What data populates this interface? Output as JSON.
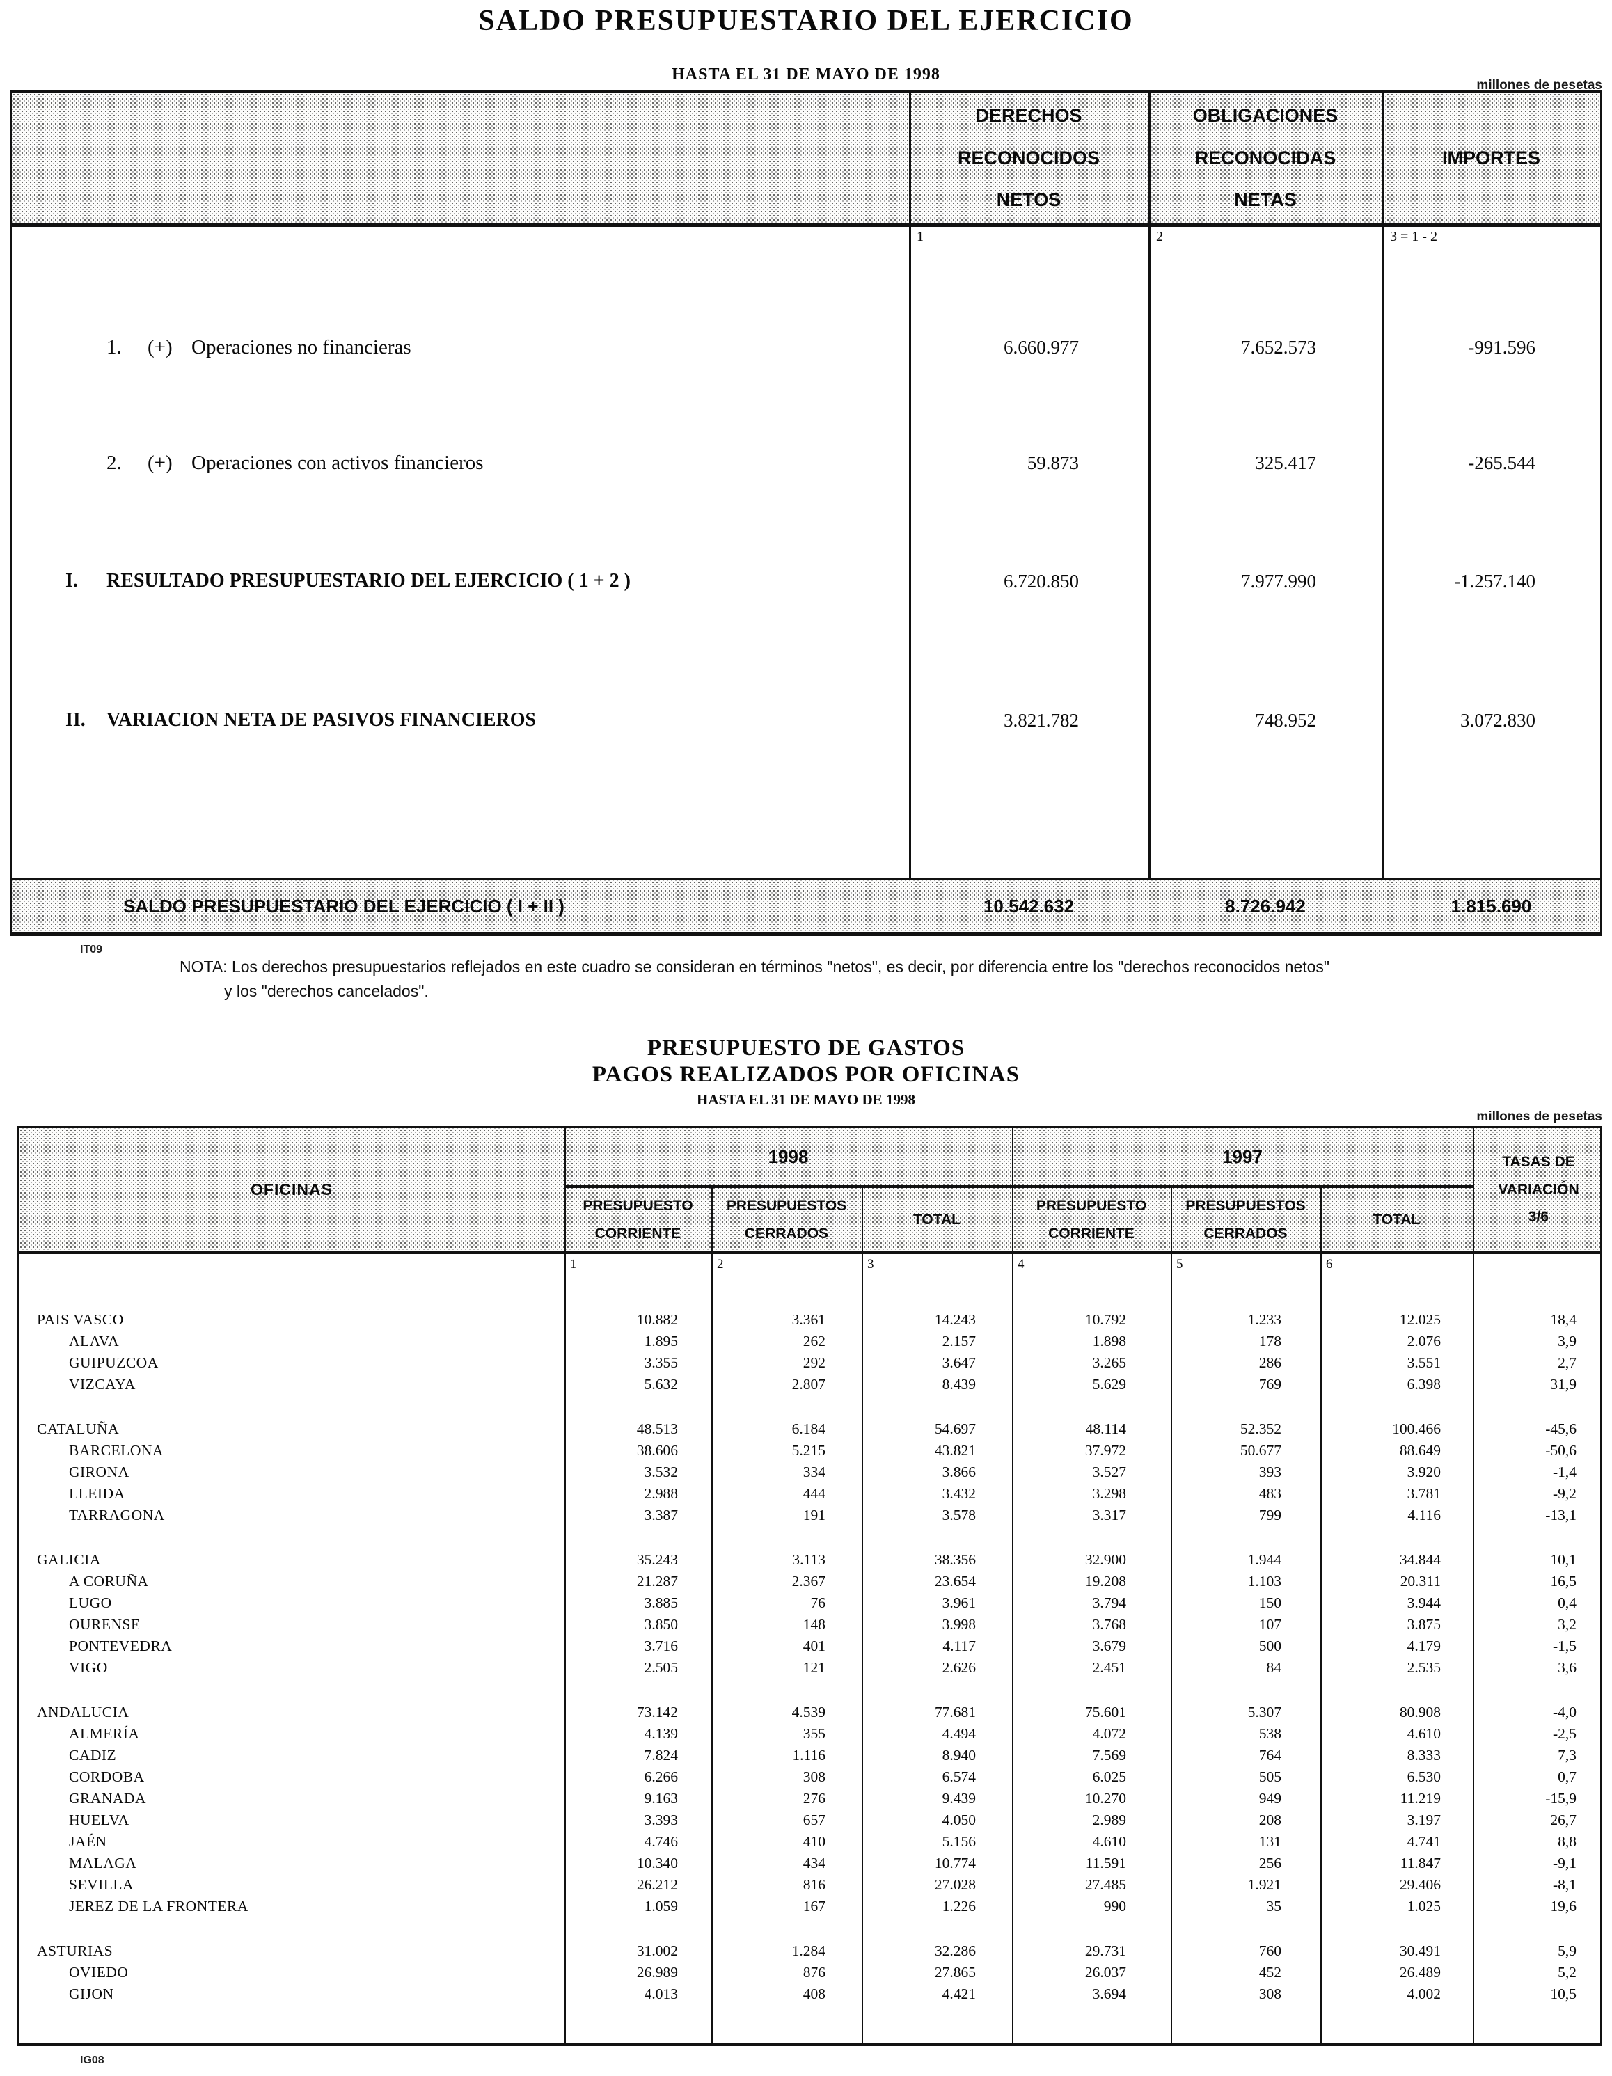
{
  "table1": {
    "title": "SALDO PRESUPUESTARIO DEL EJERCICIO",
    "subtitle": "HASTA EL 31 DE MAYO DE 1998",
    "units": "millones de pesetas",
    "headers": [
      "DERECHOS\nRECONOCIDOS\nNETOS",
      "OBLIGACIONES\nRECONOCIDAS\nNETAS",
      "IMPORTES"
    ],
    "col_numbers": [
      "1",
      "2",
      "3 = 1 - 2"
    ],
    "rows": [
      {
        "num": "1.",
        "sign": "(+)",
        "label": "Operaciones no financieras",
        "bold": false,
        "values": [
          "6.660.977",
          "7.652.573",
          "-991.596"
        ]
      },
      {
        "num": "2.",
        "sign": "(+)",
        "label": "Operaciones con activos financieros",
        "bold": false,
        "values": [
          "59.873",
          "325.417",
          "-265.544"
        ]
      },
      {
        "num": "I.",
        "sign": "",
        "label": "RESULTADO PRESUPUESTARIO DEL EJERCICIO ( 1 + 2 )",
        "bold": true,
        "values": [
          "6.720.850",
          "7.977.990",
          "-1.257.140"
        ]
      },
      {
        "num": "II.",
        "sign": "",
        "label": "VARIACION NETA DE PASIVOS FINANCIEROS",
        "bold": true,
        "values": [
          "3.821.782",
          "748.952",
          "3.072.830"
        ]
      }
    ],
    "total": {
      "label": "SALDO PRESUPUESTARIO DEL EJERCICIO ( I + II )",
      "values": [
        "10.542.632",
        "8.726.942",
        "1.815.690"
      ]
    },
    "code": "IT09",
    "note_line1": "NOTA: Los derechos presupuestarios reflejados en este cuadro se consideran en términos \"netos\", es decir, por diferencia entre los \"derechos reconocidos netos\"",
    "note_line2": "y los \"derechos cancelados\"."
  },
  "table2": {
    "title1": "PRESUPUESTO DE GASTOS",
    "title2": "PAGOS REALIZADOS POR OFICINAS",
    "subtitle": "HASTA EL 31 DE MAYO DE 1998",
    "units": "millones de pesetas",
    "oficinas_header": "OFICINAS",
    "year_headers": [
      "1998",
      "1997"
    ],
    "sub_headers": [
      "PRESUPUESTO\nCORRIENTE",
      "PRESUPUESTOS\nCERRADOS",
      "TOTAL",
      "PRESUPUESTO\nCORRIENTE",
      "PRESUPUESTOS\nCERRADOS",
      "TOTAL"
    ],
    "tasas_header": "TASAS DE\nVARIACIÓN\n3/6",
    "col_numbers": [
      "1",
      "2",
      "3",
      "4",
      "5",
      "6"
    ],
    "groups": [
      {
        "rows": [
          {
            "label": "PAIS VASCO",
            "sub": false,
            "values": [
              "10.882",
              "3.361",
              "14.243",
              "10.792",
              "1.233",
              "12.025",
              "18,4"
            ]
          },
          {
            "label": "ALAVA",
            "sub": true,
            "values": [
              "1.895",
              "262",
              "2.157",
              "1.898",
              "178",
              "2.076",
              "3,9"
            ]
          },
          {
            "label": "GUIPUZCOA",
            "sub": true,
            "values": [
              "3.355",
              "292",
              "3.647",
              "3.265",
              "286",
              "3.551",
              "2,7"
            ]
          },
          {
            "label": "VIZCAYA",
            "sub": true,
            "values": [
              "5.632",
              "2.807",
              "8.439",
              "5.629",
              "769",
              "6.398",
              "31,9"
            ]
          }
        ]
      },
      {
        "rows": [
          {
            "label": "CATALUÑA",
            "sub": false,
            "values": [
              "48.513",
              "6.184",
              "54.697",
              "48.114",
              "52.352",
              "100.466",
              "-45,6"
            ]
          },
          {
            "label": "BARCELONA",
            "sub": true,
            "values": [
              "38.606",
              "5.215",
              "43.821",
              "37.972",
              "50.677",
              "88.649",
              "-50,6"
            ]
          },
          {
            "label": "GIRONA",
            "sub": true,
            "values": [
              "3.532",
              "334",
              "3.866",
              "3.527",
              "393",
              "3.920",
              "-1,4"
            ]
          },
          {
            "label": "LLEIDA",
            "sub": true,
            "values": [
              "2.988",
              "444",
              "3.432",
              "3.298",
              "483",
              "3.781",
              "-9,2"
            ]
          },
          {
            "label": "TARRAGONA",
            "sub": true,
            "values": [
              "3.387",
              "191",
              "3.578",
              "3.317",
              "799",
              "4.116",
              "-13,1"
            ]
          }
        ]
      },
      {
        "rows": [
          {
            "label": "GALICIA",
            "sub": false,
            "values": [
              "35.243",
              "3.113",
              "38.356",
              "32.900",
              "1.944",
              "34.844",
              "10,1"
            ]
          },
          {
            "label": "A CORUÑA",
            "sub": true,
            "values": [
              "21.287",
              "2.367",
              "23.654",
              "19.208",
              "1.103",
              "20.311",
              "16,5"
            ]
          },
          {
            "label": "LUGO",
            "sub": true,
            "values": [
              "3.885",
              "76",
              "3.961",
              "3.794",
              "150",
              "3.944",
              "0,4"
            ]
          },
          {
            "label": "OURENSE",
            "sub": true,
            "values": [
              "3.850",
              "148",
              "3.998",
              "3.768",
              "107",
              "3.875",
              "3,2"
            ]
          },
          {
            "label": "PONTEVEDRA",
            "sub": true,
            "values": [
              "3.716",
              "401",
              "4.117",
              "3.679",
              "500",
              "4.179",
              "-1,5"
            ]
          },
          {
            "label": "VIGO",
            "sub": true,
            "values": [
              "2.505",
              "121",
              "2.626",
              "2.451",
              "84",
              "2.535",
              "3,6"
            ]
          }
        ]
      },
      {
        "rows": [
          {
            "label": "ANDALUCIA",
            "sub": false,
            "values": [
              "73.142",
              "4.539",
              "77.681",
              "75.601",
              "5.307",
              "80.908",
              "-4,0"
            ]
          },
          {
            "label": "ALMERÍA",
            "sub": true,
            "values": [
              "4.139",
              "355",
              "4.494",
              "4.072",
              "538",
              "4.610",
              "-2,5"
            ]
          },
          {
            "label": "CADIZ",
            "sub": true,
            "values": [
              "7.824",
              "1.116",
              "8.940",
              "7.569",
              "764",
              "8.333",
              "7,3"
            ]
          },
          {
            "label": "CORDOBA",
            "sub": true,
            "values": [
              "6.266",
              "308",
              "6.574",
              "6.025",
              "505",
              "6.530",
              "0,7"
            ]
          },
          {
            "label": "GRANADA",
            "sub": true,
            "values": [
              "9.163",
              "276",
              "9.439",
              "10.270",
              "949",
              "11.219",
              "-15,9"
            ]
          },
          {
            "label": "HUELVA",
            "sub": true,
            "values": [
              "3.393",
              "657",
              "4.050",
              "2.989",
              "208",
              "3.197",
              "26,7"
            ]
          },
          {
            "label": "JAÉN",
            "sub": true,
            "values": [
              "4.746",
              "410",
              "5.156",
              "4.610",
              "131",
              "4.741",
              "8,8"
            ]
          },
          {
            "label": "MALAGA",
            "sub": true,
            "values": [
              "10.340",
              "434",
              "10.774",
              "11.591",
              "256",
              "11.847",
              "-9,1"
            ]
          },
          {
            "label": "SEVILLA",
            "sub": true,
            "values": [
              "26.212",
              "816",
              "27.028",
              "27.485",
              "1.921",
              "29.406",
              "-8,1"
            ]
          },
          {
            "label": "JEREZ DE LA FRONTERA",
            "sub": true,
            "values": [
              "1.059",
              "167",
              "1.226",
              "990",
              "35",
              "1.025",
              "19,6"
            ]
          }
        ]
      },
      {
        "rows": [
          {
            "label": "ASTURIAS",
            "sub": false,
            "values": [
              "31.002",
              "1.284",
              "32.286",
              "29.731",
              "760",
              "30.491",
              "5,9"
            ]
          },
          {
            "label": "OVIEDO",
            "sub": true,
            "values": [
              "26.989",
              "876",
              "27.865",
              "26.037",
              "452",
              "26.489",
              "5,2"
            ]
          },
          {
            "label": "GIJON",
            "sub": true,
            "values": [
              "4.013",
              "408",
              "4.421",
              "3.694",
              "308",
              "4.002",
              "10,5"
            ]
          }
        ]
      }
    ],
    "code": "IG08"
  }
}
